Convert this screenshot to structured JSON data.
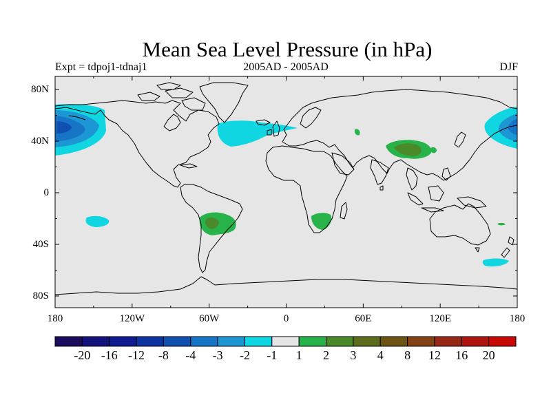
{
  "title": "Mean Sea Level Pressure (in hPa)",
  "subtitle_left": "Expt = tdpoj1-tdnaj1",
  "subtitle_center": "2005AD - 2005AD",
  "subtitle_right": "DJF",
  "lat_ticks": [
    {
      "label": "80N",
      "lat": 80
    },
    {
      "label": "40N",
      "lat": 40
    },
    {
      "label": "0",
      "lat": 0
    },
    {
      "label": "40S",
      "lat": -40
    },
    {
      "label": "80S",
      "lat": -80
    }
  ],
  "lon_ticks": [
    {
      "label": "180",
      "lon": -180
    },
    {
      "label": "120W",
      "lon": -120
    },
    {
      "label": "60W",
      "lon": -60
    },
    {
      "label": "0",
      "lon": 0
    },
    {
      "label": "60E",
      "lon": 60
    },
    {
      "label": "120E",
      "lon": 120
    },
    {
      "label": "180",
      "lon": 180
    }
  ],
  "colorbar": {
    "colors": [
      "#1c0a5c",
      "#15117a",
      "#0f1b91",
      "#0b34a0",
      "#0f50b0",
      "#1774c6",
      "#1c97d3",
      "#10d6e2",
      "#e6e6e6",
      "#28b34a",
      "#4b8a2a",
      "#5c6e1c",
      "#6e5414",
      "#844217",
      "#972815",
      "#b0140f",
      "#c80a07"
    ],
    "labels": [
      "-20",
      "-16",
      "-12",
      "-8",
      "-4",
      "-3",
      "-2",
      "-1",
      "1",
      "2",
      "3",
      "4",
      "8",
      "12",
      "16",
      "20"
    ]
  },
  "colors": {
    "background": "#e6e6e6",
    "coast": "#000000"
  }
}
